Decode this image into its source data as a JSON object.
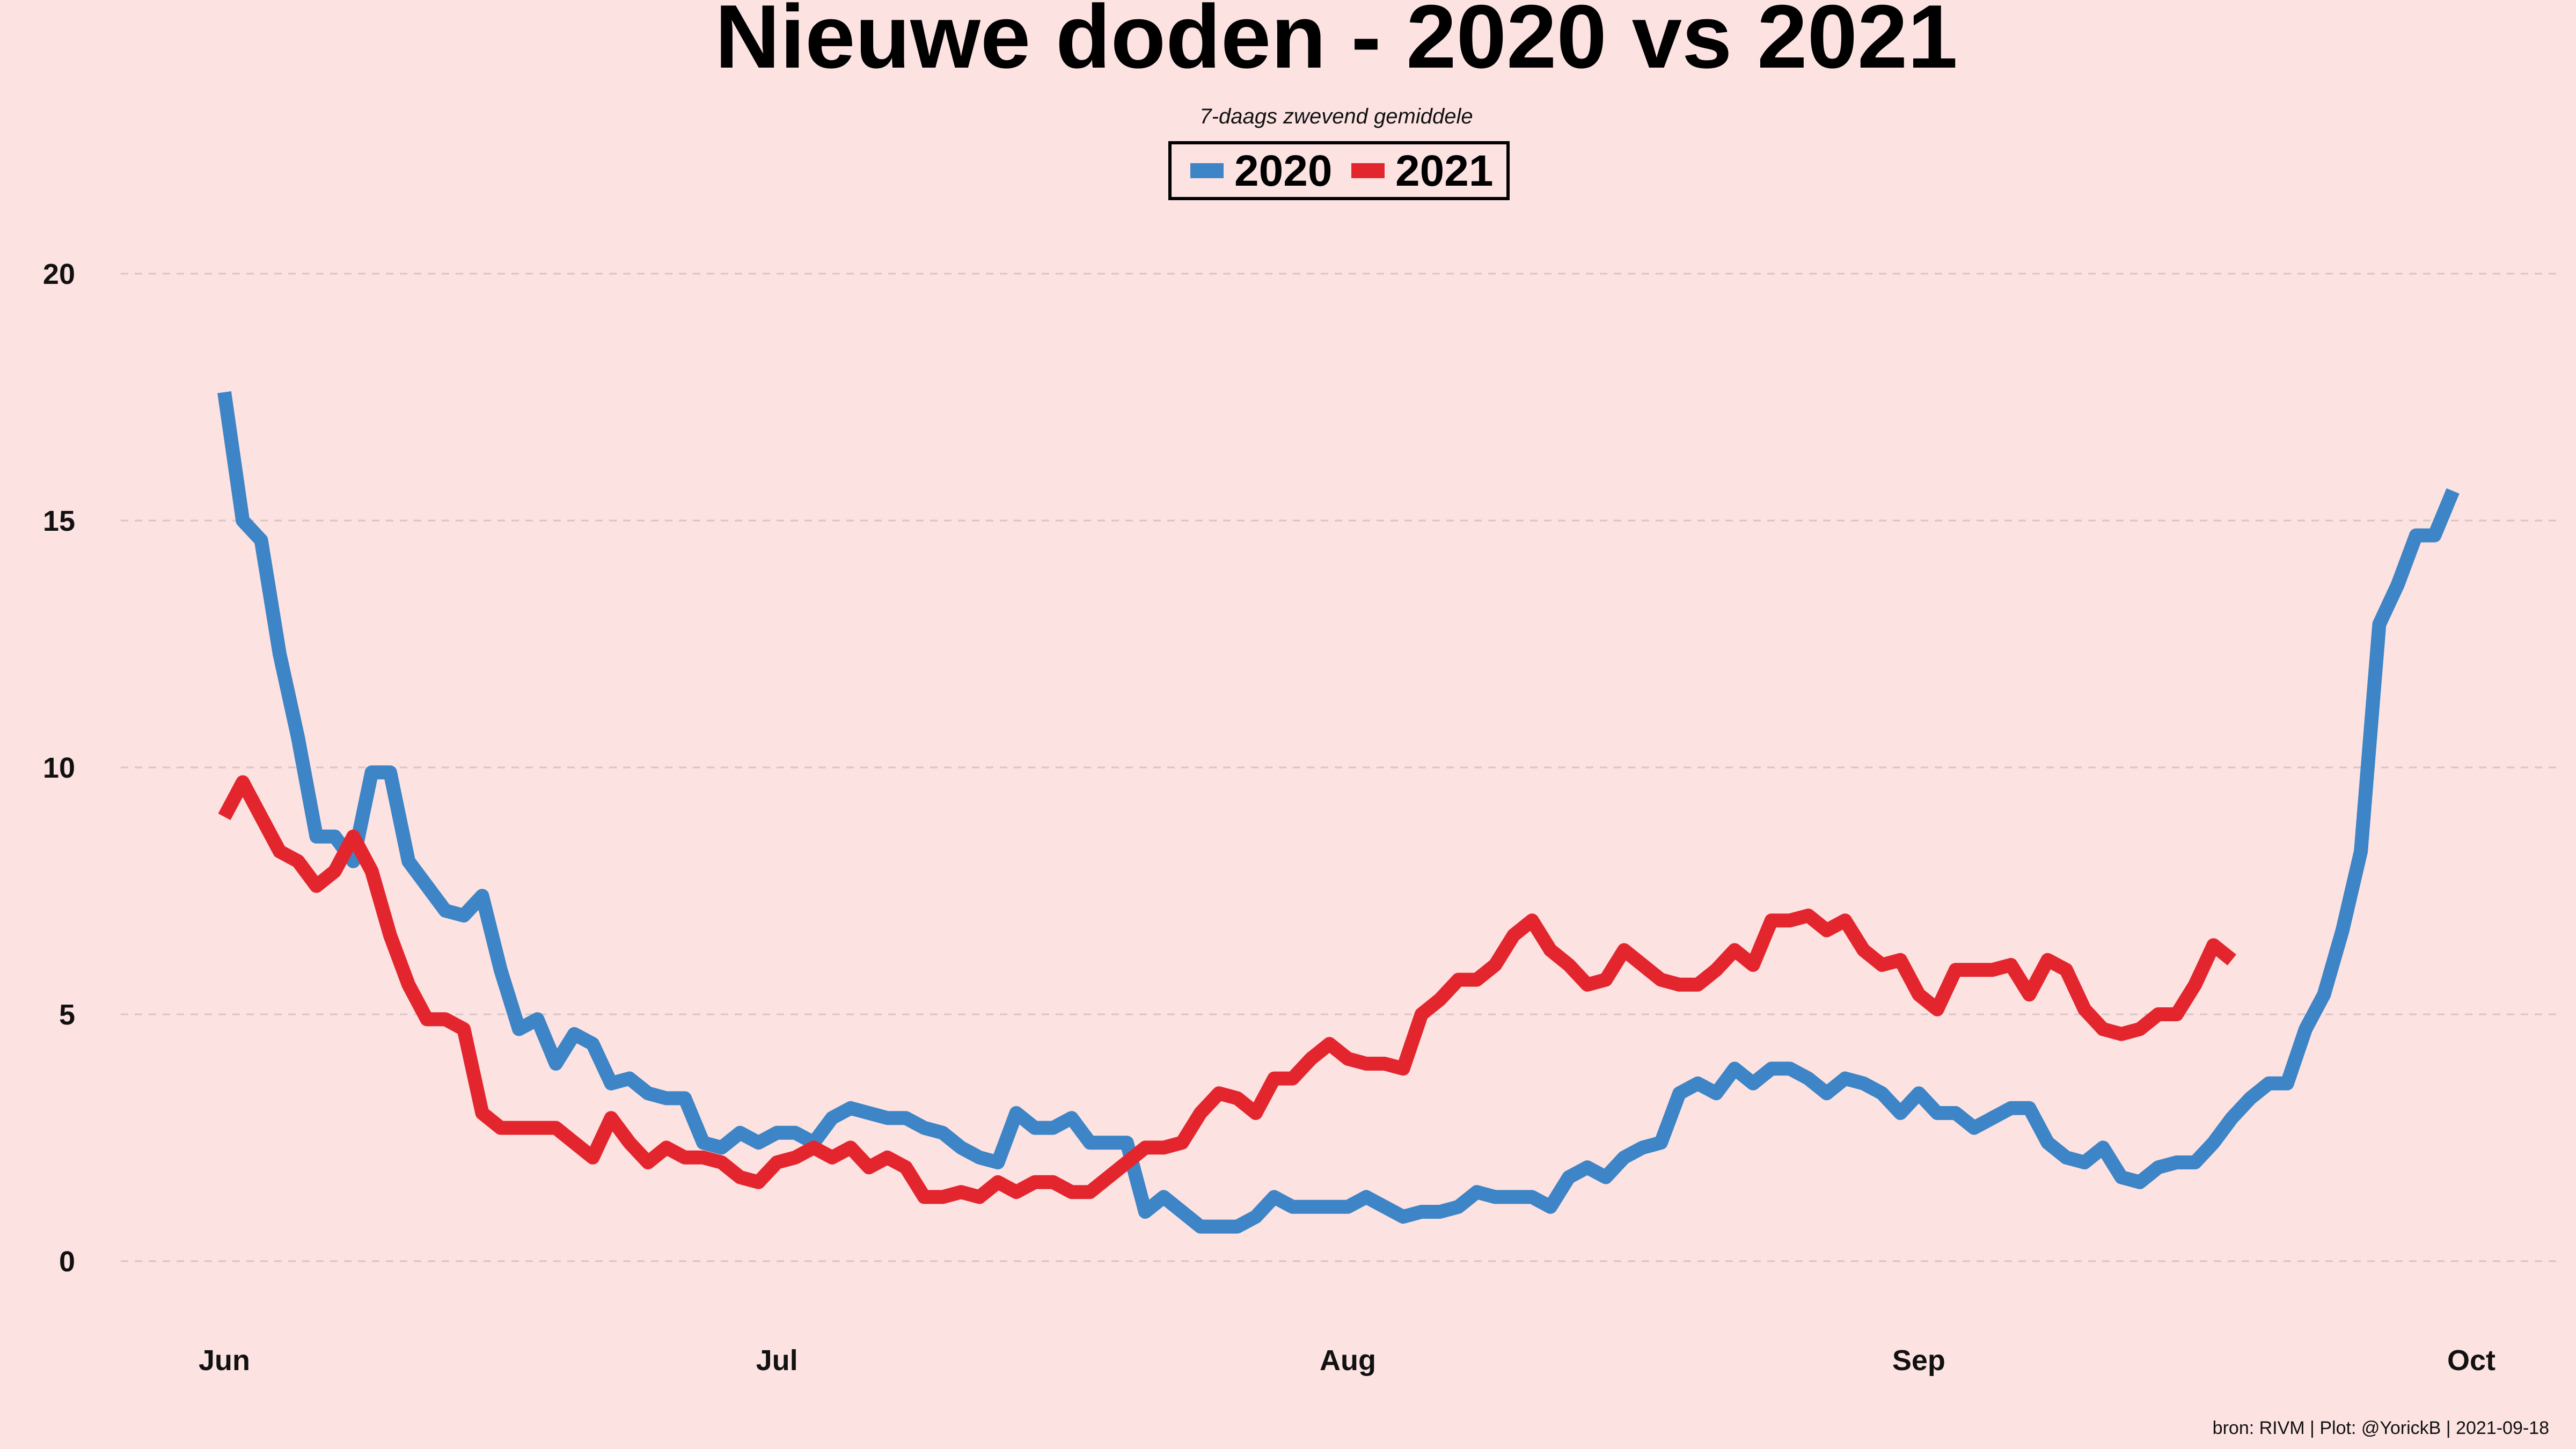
{
  "chart_data": {
    "type": "line",
    "title": "Nieuwe doden - 2020 vs 2021",
    "subtitle": "7-daags zwevend gemiddele",
    "caption": "bron: RIVM  | Plot: @YorickB |  2021-09-18",
    "xlabel": "",
    "ylabel": "",
    "x_tick_labels": [
      "Jun",
      "Jul",
      "Aug",
      "Sep",
      "Oct"
    ],
    "x_tick_days": [
      0,
      30,
      61,
      92,
      122
    ],
    "y_ticks": [
      0,
      5,
      10,
      15,
      20
    ],
    "ylim": [
      0,
      20
    ],
    "xlim_days": [
      0,
      122
    ],
    "grid": "horizontal dashed",
    "legend_position": "top-center",
    "series": [
      {
        "name": "2020",
        "color": "#3d85c6",
        "start_day": 0,
        "values": [
          17.6,
          15.0,
          14.6,
          12.3,
          10.6,
          8.6,
          8.6,
          8.1,
          9.9,
          9.9,
          8.1,
          7.6,
          7.1,
          7.0,
          7.4,
          5.9,
          4.7,
          4.9,
          4.0,
          4.6,
          4.4,
          3.6,
          3.7,
          3.4,
          3.3,
          3.3,
          2.4,
          2.3,
          2.6,
          2.4,
          2.6,
          2.6,
          2.4,
          2.9,
          3.1,
          3.0,
          2.9,
          2.9,
          2.7,
          2.6,
          2.3,
          2.1,
          2.0,
          3.0,
          2.7,
          2.7,
          2.9,
          2.4,
          2.4,
          2.4,
          1.0,
          1.3,
          1.0,
          0.7,
          0.7,
          0.7,
          0.9,
          1.3,
          1.1,
          1.1,
          1.1,
          1.1,
          1.3,
          1.1,
          0.9,
          1.0,
          1.0,
          1.1,
          1.4,
          1.3,
          1.3,
          1.3,
          1.1,
          1.7,
          1.9,
          1.7,
          2.1,
          2.3,
          2.4,
          3.4,
          3.6,
          3.4,
          3.9,
          3.6,
          3.9,
          3.9,
          3.7,
          3.4,
          3.7,
          3.6,
          3.4,
          3.0,
          3.4,
          3.0,
          3.0,
          2.7,
          2.9,
          3.1,
          3.1,
          2.4,
          2.1,
          2.0,
          2.3,
          1.7,
          1.6,
          1.9,
          2.0,
          2.0,
          2.4,
          2.9,
          3.3,
          3.6,
          3.6,
          4.7,
          5.4,
          6.7,
          8.3,
          12.9,
          13.7,
          14.7,
          14.7,
          15.6
        ]
      },
      {
        "name": "2021",
        "color": "#e3262e",
        "start_day": 0,
        "values": [
          9.0,
          9.7,
          9.0,
          8.3,
          8.1,
          7.6,
          7.9,
          8.6,
          7.9,
          6.6,
          5.6,
          4.9,
          4.9,
          4.7,
          3.0,
          2.7,
          2.7,
          2.7,
          2.7,
          2.4,
          2.1,
          2.9,
          2.4,
          2.0,
          2.3,
          2.1,
          2.1,
          2.0,
          1.7,
          1.6,
          2.0,
          2.1,
          2.3,
          2.1,
          2.3,
          1.9,
          2.1,
          1.9,
          1.3,
          1.3,
          1.4,
          1.3,
          1.6,
          1.4,
          1.6,
          1.6,
          1.4,
          1.4,
          1.7,
          2.0,
          2.3,
          2.3,
          2.4,
          3.0,
          3.4,
          3.3,
          3.0,
          3.7,
          3.7,
          4.1,
          4.4,
          4.1,
          4.0,
          4.0,
          3.9,
          5.0,
          5.3,
          5.7,
          5.7,
          6.0,
          6.6,
          6.9,
          6.3,
          6.0,
          5.6,
          5.7,
          6.3,
          6.0,
          5.7,
          5.6,
          5.6,
          5.9,
          6.3,
          6.0,
          6.9,
          6.9,
          7.0,
          6.7,
          6.9,
          6.3,
          6.0,
          6.1,
          5.4,
          5.1,
          5.9,
          5.9,
          5.9,
          6.0,
          5.4,
          6.1,
          5.9,
          5.1,
          4.7,
          4.6,
          4.7,
          5.0,
          5.0,
          5.6,
          6.4,
          6.1
        ]
      }
    ]
  }
}
